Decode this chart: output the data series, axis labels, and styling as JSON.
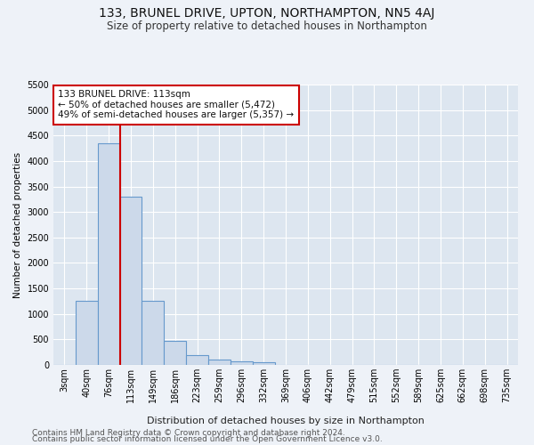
{
  "title": "133, BRUNEL DRIVE, UPTON, NORTHAMPTON, NN5 4AJ",
  "subtitle": "Size of property relative to detached houses in Northampton",
  "xlabel": "Distribution of detached houses by size in Northampton",
  "ylabel": "Number of detached properties",
  "bin_labels": [
    "3sqm",
    "40sqm",
    "76sqm",
    "113sqm",
    "149sqm",
    "186sqm",
    "223sqm",
    "259sqm",
    "296sqm",
    "332sqm",
    "369sqm",
    "406sqm",
    "442sqm",
    "479sqm",
    "515sqm",
    "552sqm",
    "589sqm",
    "625sqm",
    "662sqm",
    "698sqm",
    "735sqm"
  ],
  "bar_values": [
    0,
    1250,
    4350,
    3300,
    1250,
    475,
    200,
    100,
    75,
    60,
    0,
    0,
    0,
    0,
    0,
    0,
    0,
    0,
    0,
    0,
    0
  ],
  "bar_color": "#ccd9ea",
  "bar_edgecolor": "#6699cc",
  "bar_linewidth": 0.8,
  "vline_x_index": 3,
  "vline_color": "#cc0000",
  "ylim": [
    0,
    5500
  ],
  "yticks": [
    0,
    500,
    1000,
    1500,
    2000,
    2500,
    3000,
    3500,
    4000,
    4500,
    5000,
    5500
  ],
  "annotation_text": "133 BRUNEL DRIVE: 113sqm\n← 50% of detached houses are smaller (5,472)\n49% of semi-detached houses are larger (5,357) →",
  "footer_line1": "Contains HM Land Registry data © Crown copyright and database right 2024.",
  "footer_line2": "Contains public sector information licensed under the Open Government Licence v3.0.",
  "bg_color": "#eef2f8",
  "plot_bg_color": "#dde6f0",
  "grid_color": "#ffffff",
  "title_fontsize": 10,
  "subtitle_fontsize": 8.5,
  "xlabel_fontsize": 8,
  "ylabel_fontsize": 7.5,
  "tick_fontsize": 7,
  "annotation_fontsize": 7.5,
  "footer_fontsize": 6.5
}
